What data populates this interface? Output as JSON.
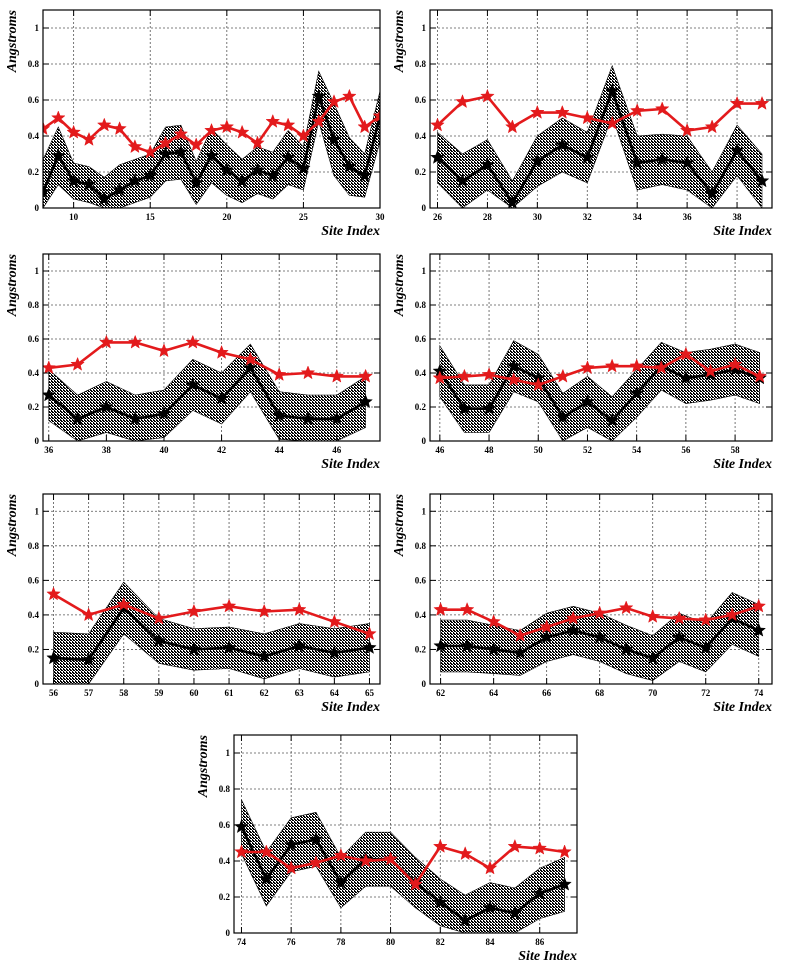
{
  "chart_data": [
    {
      "type": "line",
      "xlabel": "Site Index",
      "ylabel": "Angstroms",
      "xlim": [
        8,
        30
      ],
      "ylim": [
        0,
        1.1
      ],
      "xticks": [
        10,
        15,
        20,
        25,
        30
      ],
      "yticks": [
        0,
        0.2,
        0.4,
        0.6,
        0.8,
        1
      ],
      "grid": true,
      "x": [
        8,
        9,
        10,
        11,
        12,
        13,
        14,
        15,
        16,
        17,
        18,
        19,
        20,
        21,
        22,
        23,
        24,
        25,
        26,
        27,
        28,
        29,
        30
      ],
      "series": [
        {
          "name": "black-mean",
          "color": "#000000",
          "values": [
            0.09,
            0.29,
            0.15,
            0.13,
            0.05,
            0.1,
            0.15,
            0.18,
            0.3,
            0.31,
            0.14,
            0.29,
            0.21,
            0.15,
            0.21,
            0.18,
            0.28,
            0.22,
            0.62,
            0.38,
            0.23,
            0.18,
            0.51
          ],
          "band": [
            0.18,
            0.16,
            0.1,
            0.1,
            0.12,
            0.14,
            0.12,
            0.12,
            0.15,
            0.15,
            0.12,
            0.15,
            0.14,
            0.12,
            0.13,
            0.13,
            0.15,
            0.12,
            0.14,
            0.2,
            0.16,
            0.12,
            0.14
          ]
        },
        {
          "name": "red-reference",
          "color": "#e31a1c",
          "values": [
            0.44,
            0.5,
            0.42,
            0.38,
            0.46,
            0.44,
            0.34,
            0.31,
            0.36,
            0.41,
            0.35,
            0.43,
            0.45,
            0.42,
            0.36,
            0.48,
            0.46,
            0.4,
            0.48,
            0.59,
            0.62,
            0.45,
            0.51
          ]
        }
      ]
    },
    {
      "type": "line",
      "xlabel": "Site Index",
      "ylabel": "Angstroms",
      "xlim": [
        25.7,
        39.4
      ],
      "ylim": [
        0,
        1.1
      ],
      "xticks": [
        26,
        28,
        30,
        32,
        34,
        36,
        38
      ],
      "yticks": [
        0,
        0.2,
        0.4,
        0.6,
        0.8,
        1
      ],
      "grid": true,
      "x": [
        26,
        27,
        28,
        29,
        30,
        31,
        32,
        33,
        34,
        35,
        36,
        37,
        38,
        39
      ],
      "series": [
        {
          "name": "black-mean",
          "color": "#000000",
          "values": [
            0.28,
            0.15,
            0.24,
            0.03,
            0.26,
            0.35,
            0.28,
            0.65,
            0.25,
            0.27,
            0.25,
            0.08,
            0.32,
            0.15
          ],
          "band": [
            0.14,
            0.15,
            0.14,
            0.12,
            0.14,
            0.15,
            0.14,
            0.14,
            0.15,
            0.14,
            0.15,
            0.12,
            0.14,
            0.15
          ]
        },
        {
          "name": "red-reference",
          "color": "#e31a1c",
          "values": [
            0.46,
            0.59,
            0.62,
            0.45,
            0.53,
            0.53,
            0.5,
            0.47,
            0.54,
            0.55,
            0.43,
            0.45,
            0.58,
            0.58
          ]
        }
      ]
    },
    {
      "type": "line",
      "xlabel": "Site Index",
      "ylabel": "Angstroms",
      "xlim": [
        35.8,
        47.5
      ],
      "ylim": [
        0,
        1.1
      ],
      "xticks": [
        36,
        38,
        40,
        42,
        44,
        46
      ],
      "yticks": [
        0,
        0.2,
        0.4,
        0.6,
        0.8,
        1
      ],
      "grid": true,
      "x": [
        36,
        37,
        38,
        39,
        40,
        41,
        42,
        43,
        44,
        45,
        46,
        47
      ],
      "series": [
        {
          "name": "black-mean",
          "color": "#000000",
          "values": [
            0.27,
            0.13,
            0.2,
            0.13,
            0.16,
            0.33,
            0.25,
            0.43,
            0.15,
            0.13,
            0.13,
            0.23
          ],
          "band": [
            0.15,
            0.14,
            0.15,
            0.14,
            0.14,
            0.15,
            0.15,
            0.14,
            0.14,
            0.14,
            0.14,
            0.15
          ]
        },
        {
          "name": "red-reference",
          "color": "#e31a1c",
          "values": [
            0.43,
            0.45,
            0.58,
            0.58,
            0.53,
            0.58,
            0.52,
            0.48,
            0.39,
            0.4,
            0.38,
            0.38
          ]
        }
      ]
    },
    {
      "type": "line",
      "xlabel": "Site Index",
      "ylabel": "Angstroms",
      "xlim": [
        45.6,
        59.5
      ],
      "ylim": [
        0,
        1.1
      ],
      "xticks": [
        46,
        48,
        50,
        52,
        54,
        56,
        58
      ],
      "yticks": [
        0,
        0.2,
        0.4,
        0.6,
        0.8,
        1
      ],
      "grid": true,
      "x": [
        46,
        47,
        48,
        49,
        50,
        51,
        52,
        53,
        54,
        55,
        56,
        57,
        58,
        59
      ],
      "series": [
        {
          "name": "black-mean",
          "color": "#000000",
          "values": [
            0.41,
            0.19,
            0.19,
            0.44,
            0.37,
            0.14,
            0.23,
            0.12,
            0.28,
            0.44,
            0.37,
            0.39,
            0.42,
            0.37
          ],
          "band": [
            0.15,
            0.14,
            0.14,
            0.15,
            0.14,
            0.14,
            0.15,
            0.14,
            0.14,
            0.14,
            0.15,
            0.15,
            0.15,
            0.15
          ]
        },
        {
          "name": "red-reference",
          "color": "#e31a1c",
          "values": [
            0.37,
            0.38,
            0.39,
            0.36,
            0.33,
            0.38,
            0.43,
            0.44,
            0.44,
            0.43,
            0.51,
            0.41,
            0.45,
            0.38
          ]
        }
      ]
    },
    {
      "type": "line",
      "xlabel": "Site Index",
      "ylabel": "Angstroms",
      "xlim": [
        55.7,
        65.3
      ],
      "ylim": [
        0,
        1.1
      ],
      "xticks": [
        56,
        57,
        58,
        59,
        60,
        61,
        62,
        63,
        64,
        65
      ],
      "yticks": [
        0,
        0.2,
        0.4,
        0.6,
        0.8,
        1
      ],
      "grid": true,
      "x": [
        56,
        57,
        58,
        59,
        60,
        61,
        62,
        63,
        64,
        65
      ],
      "series": [
        {
          "name": "black-mean",
          "color": "#000000",
          "values": [
            0.15,
            0.14,
            0.44,
            0.25,
            0.2,
            0.21,
            0.16,
            0.22,
            0.18,
            0.21
          ],
          "band": [
            0.15,
            0.15,
            0.15,
            0.13,
            0.12,
            0.12,
            0.13,
            0.13,
            0.14,
            0.14
          ]
        },
        {
          "name": "red-reference",
          "color": "#e31a1c",
          "values": [
            0.52,
            0.4,
            0.46,
            0.38,
            0.42,
            0.45,
            0.42,
            0.43,
            0.36,
            0.29
          ]
        }
      ]
    },
    {
      "type": "line",
      "xlabel": "Site Index",
      "ylabel": "Angstroms",
      "xlim": [
        61.6,
        74.5
      ],
      "ylim": [
        0,
        1.1
      ],
      "xticks": [
        62,
        64,
        66,
        68,
        70,
        72,
        74
      ],
      "yticks": [
        0,
        0.2,
        0.4,
        0.6,
        0.8,
        1
      ],
      "grid": true,
      "x": [
        62,
        63,
        64,
        65,
        66,
        67,
        68,
        69,
        70,
        71,
        72,
        73,
        74
      ],
      "series": [
        {
          "name": "black-mean",
          "color": "#000000",
          "values": [
            0.22,
            0.22,
            0.2,
            0.18,
            0.27,
            0.31,
            0.27,
            0.2,
            0.15,
            0.27,
            0.21,
            0.38,
            0.31
          ],
          "band": [
            0.15,
            0.15,
            0.14,
            0.13,
            0.14,
            0.14,
            0.14,
            0.14,
            0.13,
            0.14,
            0.14,
            0.15,
            0.15
          ]
        },
        {
          "name": "red-reference",
          "color": "#e31a1c",
          "values": [
            0.43,
            0.43,
            0.36,
            0.28,
            0.33,
            0.38,
            0.41,
            0.44,
            0.39,
            0.38,
            0.37,
            0.4,
            0.45
          ]
        }
      ]
    },
    {
      "type": "line",
      "xlabel": "Site Index",
      "ylabel": "Angstroms",
      "xlim": [
        73.7,
        87.5
      ],
      "ylim": [
        0,
        1.1
      ],
      "xticks": [
        74,
        76,
        78,
        80,
        82,
        84,
        86
      ],
      "yticks": [
        0,
        0.2,
        0.4,
        0.6,
        0.8,
        1
      ],
      "grid": true,
      "x": [
        74,
        75,
        76,
        77,
        78,
        79,
        80,
        81,
        82,
        83,
        84,
        85,
        86,
        87
      ],
      "series": [
        {
          "name": "black-mean",
          "color": "#000000",
          "values": [
            0.59,
            0.3,
            0.49,
            0.52,
            0.28,
            0.41,
            0.41,
            0.28,
            0.17,
            0.07,
            0.14,
            0.11,
            0.22,
            0.27
          ],
          "band": [
            0.15,
            0.15,
            0.15,
            0.15,
            0.14,
            0.15,
            0.15,
            0.14,
            0.13,
            0.14,
            0.14,
            0.14,
            0.14,
            0.15
          ]
        },
        {
          "name": "red-reference",
          "color": "#e31a1c",
          "values": [
            0.45,
            0.45,
            0.36,
            0.39,
            0.43,
            0.4,
            0.41,
            0.27,
            0.48,
            0.44,
            0.36,
            0.48,
            0.47,
            0.45
          ]
        }
      ]
    }
  ]
}
